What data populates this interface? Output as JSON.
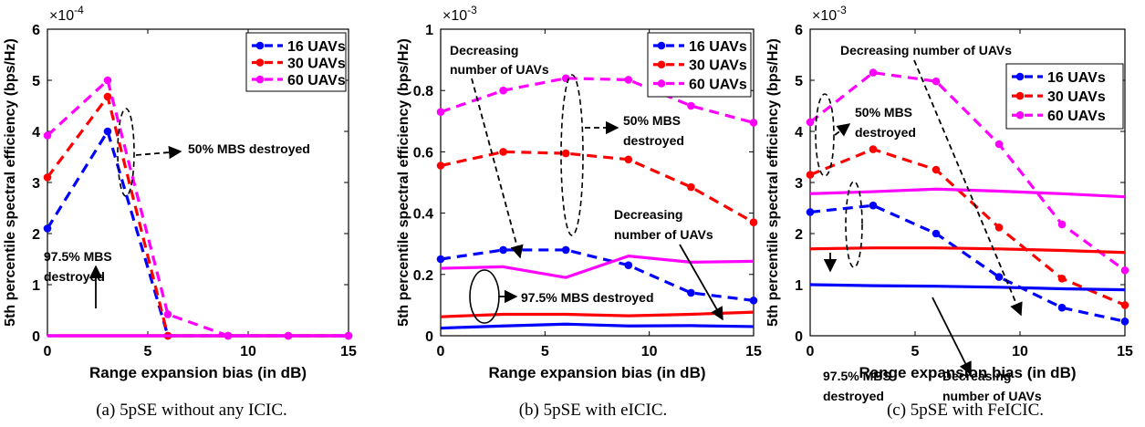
{
  "chart_data": [
    {
      "type": "line",
      "caption": "(a) 5pSE without any ICIC.",
      "xlabel": "Range expansion bias (in dB)",
      "ylabel": "5th percentile spectral efficiency (bps/Hz)",
      "exponent": "×10^-4",
      "exponent_base": "×10",
      "exponent_power": "-4",
      "xlim": [
        0,
        15
      ],
      "ylim": [
        0,
        6
      ],
      "xticks": [
        "0",
        "5",
        "10",
        "15"
      ],
      "yticks": [
        "0",
        "1",
        "2",
        "3",
        "4",
        "5",
        "6"
      ],
      "grid": false,
      "legend_position": "top-right",
      "series": [
        {
          "name": "16 UAVs",
          "color": "#0000ff",
          "style": "dashed",
          "marker": "circle",
          "x": [
            0,
            3,
            6,
            9,
            12,
            15
          ],
          "y": [
            2.1,
            4.0,
            0.0,
            0.0,
            0.0,
            0.0
          ]
        },
        {
          "name": "30 UAVs",
          "color": "#ff0000",
          "style": "dashed",
          "marker": "circle",
          "x": [
            0,
            3,
            6,
            9,
            12,
            15
          ],
          "y": [
            3.1,
            4.68,
            0.0,
            0.0,
            0.0,
            0.0
          ]
        },
        {
          "name": "60 UAVs",
          "color": "#ff00ff",
          "style": "dashed",
          "marker": "circle",
          "x": [
            0,
            3,
            6,
            9,
            12,
            15
          ],
          "y": [
            3.92,
            5.0,
            0.42,
            0.0,
            0.0,
            0.0
          ]
        },
        {
          "color": "#0000ff",
          "style": "solid",
          "x": [
            0,
            3,
            6,
            9,
            12,
            15
          ],
          "y": [
            0,
            0,
            0,
            0,
            0,
            0
          ]
        },
        {
          "color": "#ff0000",
          "style": "solid",
          "x": [
            0,
            3,
            6,
            9,
            12,
            15
          ],
          "y": [
            0,
            0,
            0,
            0,
            0,
            0
          ]
        },
        {
          "color": "#ff00ff",
          "style": "solid",
          "x": [
            0,
            3,
            6,
            9,
            12,
            15
          ],
          "y": [
            0,
            0,
            0,
            0,
            0,
            0
          ]
        }
      ],
      "annotations": [
        {
          "text": "50% MBS destroyed"
        },
        {
          "text": "97.5% MBS"
        },
        {
          "text": "destroyed"
        }
      ]
    },
    {
      "type": "line",
      "caption": "(b) 5pSE with eICIC.",
      "xlabel": "Range expansion bias (in dB)",
      "ylabel": "5th percentile spectral efficiency (bps/Hz)",
      "exponent": "×10^-3",
      "exponent_base": "×10",
      "exponent_power": "-3",
      "xlim": [
        0,
        15
      ],
      "ylim": [
        0,
        1
      ],
      "xticks": [
        "0",
        "5",
        "10",
        "15"
      ],
      "yticks": [
        "0",
        "0.2",
        "0.4",
        "0.6",
        "0.8",
        "1"
      ],
      "grid": false,
      "legend_position": "top-right",
      "series": [
        {
          "name": "16 UAVs",
          "color": "#0000ff",
          "style": "dashed",
          "marker": "circle",
          "x": [
            0,
            3,
            6,
            9,
            12,
            15
          ],
          "y": [
            0.25,
            0.28,
            0.28,
            0.23,
            0.14,
            0.115
          ]
        },
        {
          "name": "30 UAVs",
          "color": "#ff0000",
          "style": "dashed",
          "marker": "circle",
          "x": [
            0,
            3,
            6,
            9,
            12,
            15
          ],
          "y": [
            0.555,
            0.6,
            0.595,
            0.575,
            0.485,
            0.37
          ]
        },
        {
          "name": "60 UAVs",
          "color": "#ff00ff",
          "style": "dashed",
          "marker": "circle",
          "x": [
            0,
            3,
            6,
            9,
            12,
            15
          ],
          "y": [
            0.73,
            0.8,
            0.84,
            0.835,
            0.75,
            0.695
          ]
        },
        {
          "color": "#0000ff",
          "style": "solid",
          "x": [
            0,
            3,
            6,
            9,
            12,
            15
          ],
          "y": [
            0.025,
            0.032,
            0.038,
            0.032,
            0.033,
            0.03
          ]
        },
        {
          "color": "#ff0000",
          "style": "solid",
          "x": [
            0,
            3,
            6,
            9,
            12,
            15
          ],
          "y": [
            0.062,
            0.07,
            0.07,
            0.065,
            0.07,
            0.077
          ]
        },
        {
          "color": "#ff00ff",
          "style": "solid",
          "x": [
            0,
            3,
            6,
            9,
            12,
            15
          ],
          "y": [
            0.22,
            0.225,
            0.19,
            0.26,
            0.24,
            0.243
          ]
        }
      ],
      "annotations": [
        {
          "text": "Decreasing"
        },
        {
          "text": "number of UAVs"
        },
        {
          "text": "50% MBS"
        },
        {
          "text": "destroyed"
        },
        {
          "text": "Decreasing"
        },
        {
          "text": "number of UAVs"
        },
        {
          "text": "97.5% MBS destroyed"
        }
      ]
    },
    {
      "type": "line",
      "caption": "(c) 5pSE with FeICIC.",
      "xlabel": "Range expansion bias (in dB)",
      "ylabel": "5th percentile spectral efficiency (bps/Hz)",
      "exponent": "×10^-3",
      "exponent_base": "×10",
      "exponent_power": "-3",
      "xlim": [
        0,
        15
      ],
      "ylim": [
        0,
        6
      ],
      "xticks": [
        "0",
        "5",
        "10",
        "15"
      ],
      "yticks": [
        "0",
        "1",
        "2",
        "3",
        "4",
        "5",
        "6"
      ],
      "grid": false,
      "legend_position": "top-right",
      "series": [
        {
          "name": "16 UAVs",
          "color": "#0000ff",
          "style": "dashed",
          "marker": "circle",
          "x": [
            0,
            3,
            6,
            9,
            12,
            15
          ],
          "y": [
            2.42,
            2.55,
            2.0,
            1.15,
            0.55,
            0.28
          ]
        },
        {
          "name": "30 UAVs",
          "color": "#ff0000",
          "style": "dashed",
          "marker": "circle",
          "x": [
            0,
            3,
            6,
            9,
            12,
            15
          ],
          "y": [
            3.15,
            3.65,
            3.25,
            2.12,
            1.12,
            0.6
          ]
        },
        {
          "name": "60 UAVs",
          "color": "#ff00ff",
          "style": "dashed",
          "marker": "circle",
          "x": [
            0,
            3,
            6,
            9,
            12,
            15
          ],
          "y": [
            4.18,
            5.15,
            4.98,
            3.75,
            2.18,
            1.28
          ]
        },
        {
          "color": "#0000ff",
          "style": "solid",
          "x": [
            0,
            3,
            6,
            9,
            12,
            15
          ],
          "y": [
            1.0,
            0.98,
            0.97,
            0.95,
            0.92,
            0.9
          ]
        },
        {
          "color": "#ff0000",
          "style": "solid",
          "x": [
            0,
            3,
            6,
            9,
            12,
            15
          ],
          "y": [
            1.7,
            1.72,
            1.72,
            1.7,
            1.67,
            1.63
          ]
        },
        {
          "color": "#ff00ff",
          "style": "solid",
          "x": [
            0,
            3,
            6,
            9,
            12,
            15
          ],
          "y": [
            2.78,
            2.82,
            2.87,
            2.83,
            2.78,
            2.72
          ]
        }
      ],
      "annotations": [
        {
          "text": "Decreasing number of UAVs"
        },
        {
          "text": "50% MBS"
        },
        {
          "text": "destroyed"
        },
        {
          "text": "97.5% MBS"
        },
        {
          "text": "destroyed"
        },
        {
          "text": "Decreasing"
        },
        {
          "text": "number of UAVs"
        }
      ]
    }
  ]
}
